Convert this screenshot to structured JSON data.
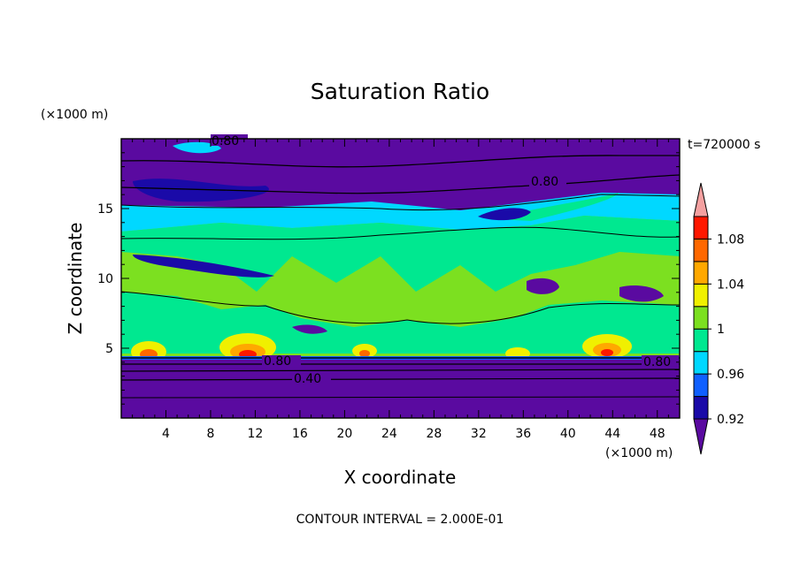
{
  "chart_data": {
    "type": "heatmap",
    "title": "Saturation Ratio",
    "xlabel": "X coordinate",
    "ylabel": "Z coordinate",
    "x_unit": "(×1000 m)",
    "y_unit": "(×1000 m)",
    "time_label": "t=720000 s",
    "footer": "CONTOUR INTERVAL = 2.000E-01",
    "xlim": [
      0,
      50
    ],
    "ylim": [
      0,
      20
    ],
    "x_ticks": [
      "4",
      "8",
      "12",
      "16",
      "20",
      "24",
      "28",
      "32",
      "36",
      "40",
      "44",
      "48"
    ],
    "y_ticks": [
      "5",
      "10",
      "15"
    ],
    "colorbar": {
      "tick_labels": [
        "1.08",
        "1.04",
        "1",
        "0.96",
        "0.92"
      ],
      "colors": [
        "#5a0aa0",
        "#1a0aa8",
        "#1060ff",
        "#00d8ff",
        "#00e890",
        "#7ce020",
        "#f0f000",
        "#ffa800",
        "#ff6800",
        "#ff1800",
        "#f4a0a0"
      ]
    },
    "contour_labels": [
      "0.80",
      "0.80",
      "0.80",
      "0.40",
      "0.80"
    ]
  }
}
